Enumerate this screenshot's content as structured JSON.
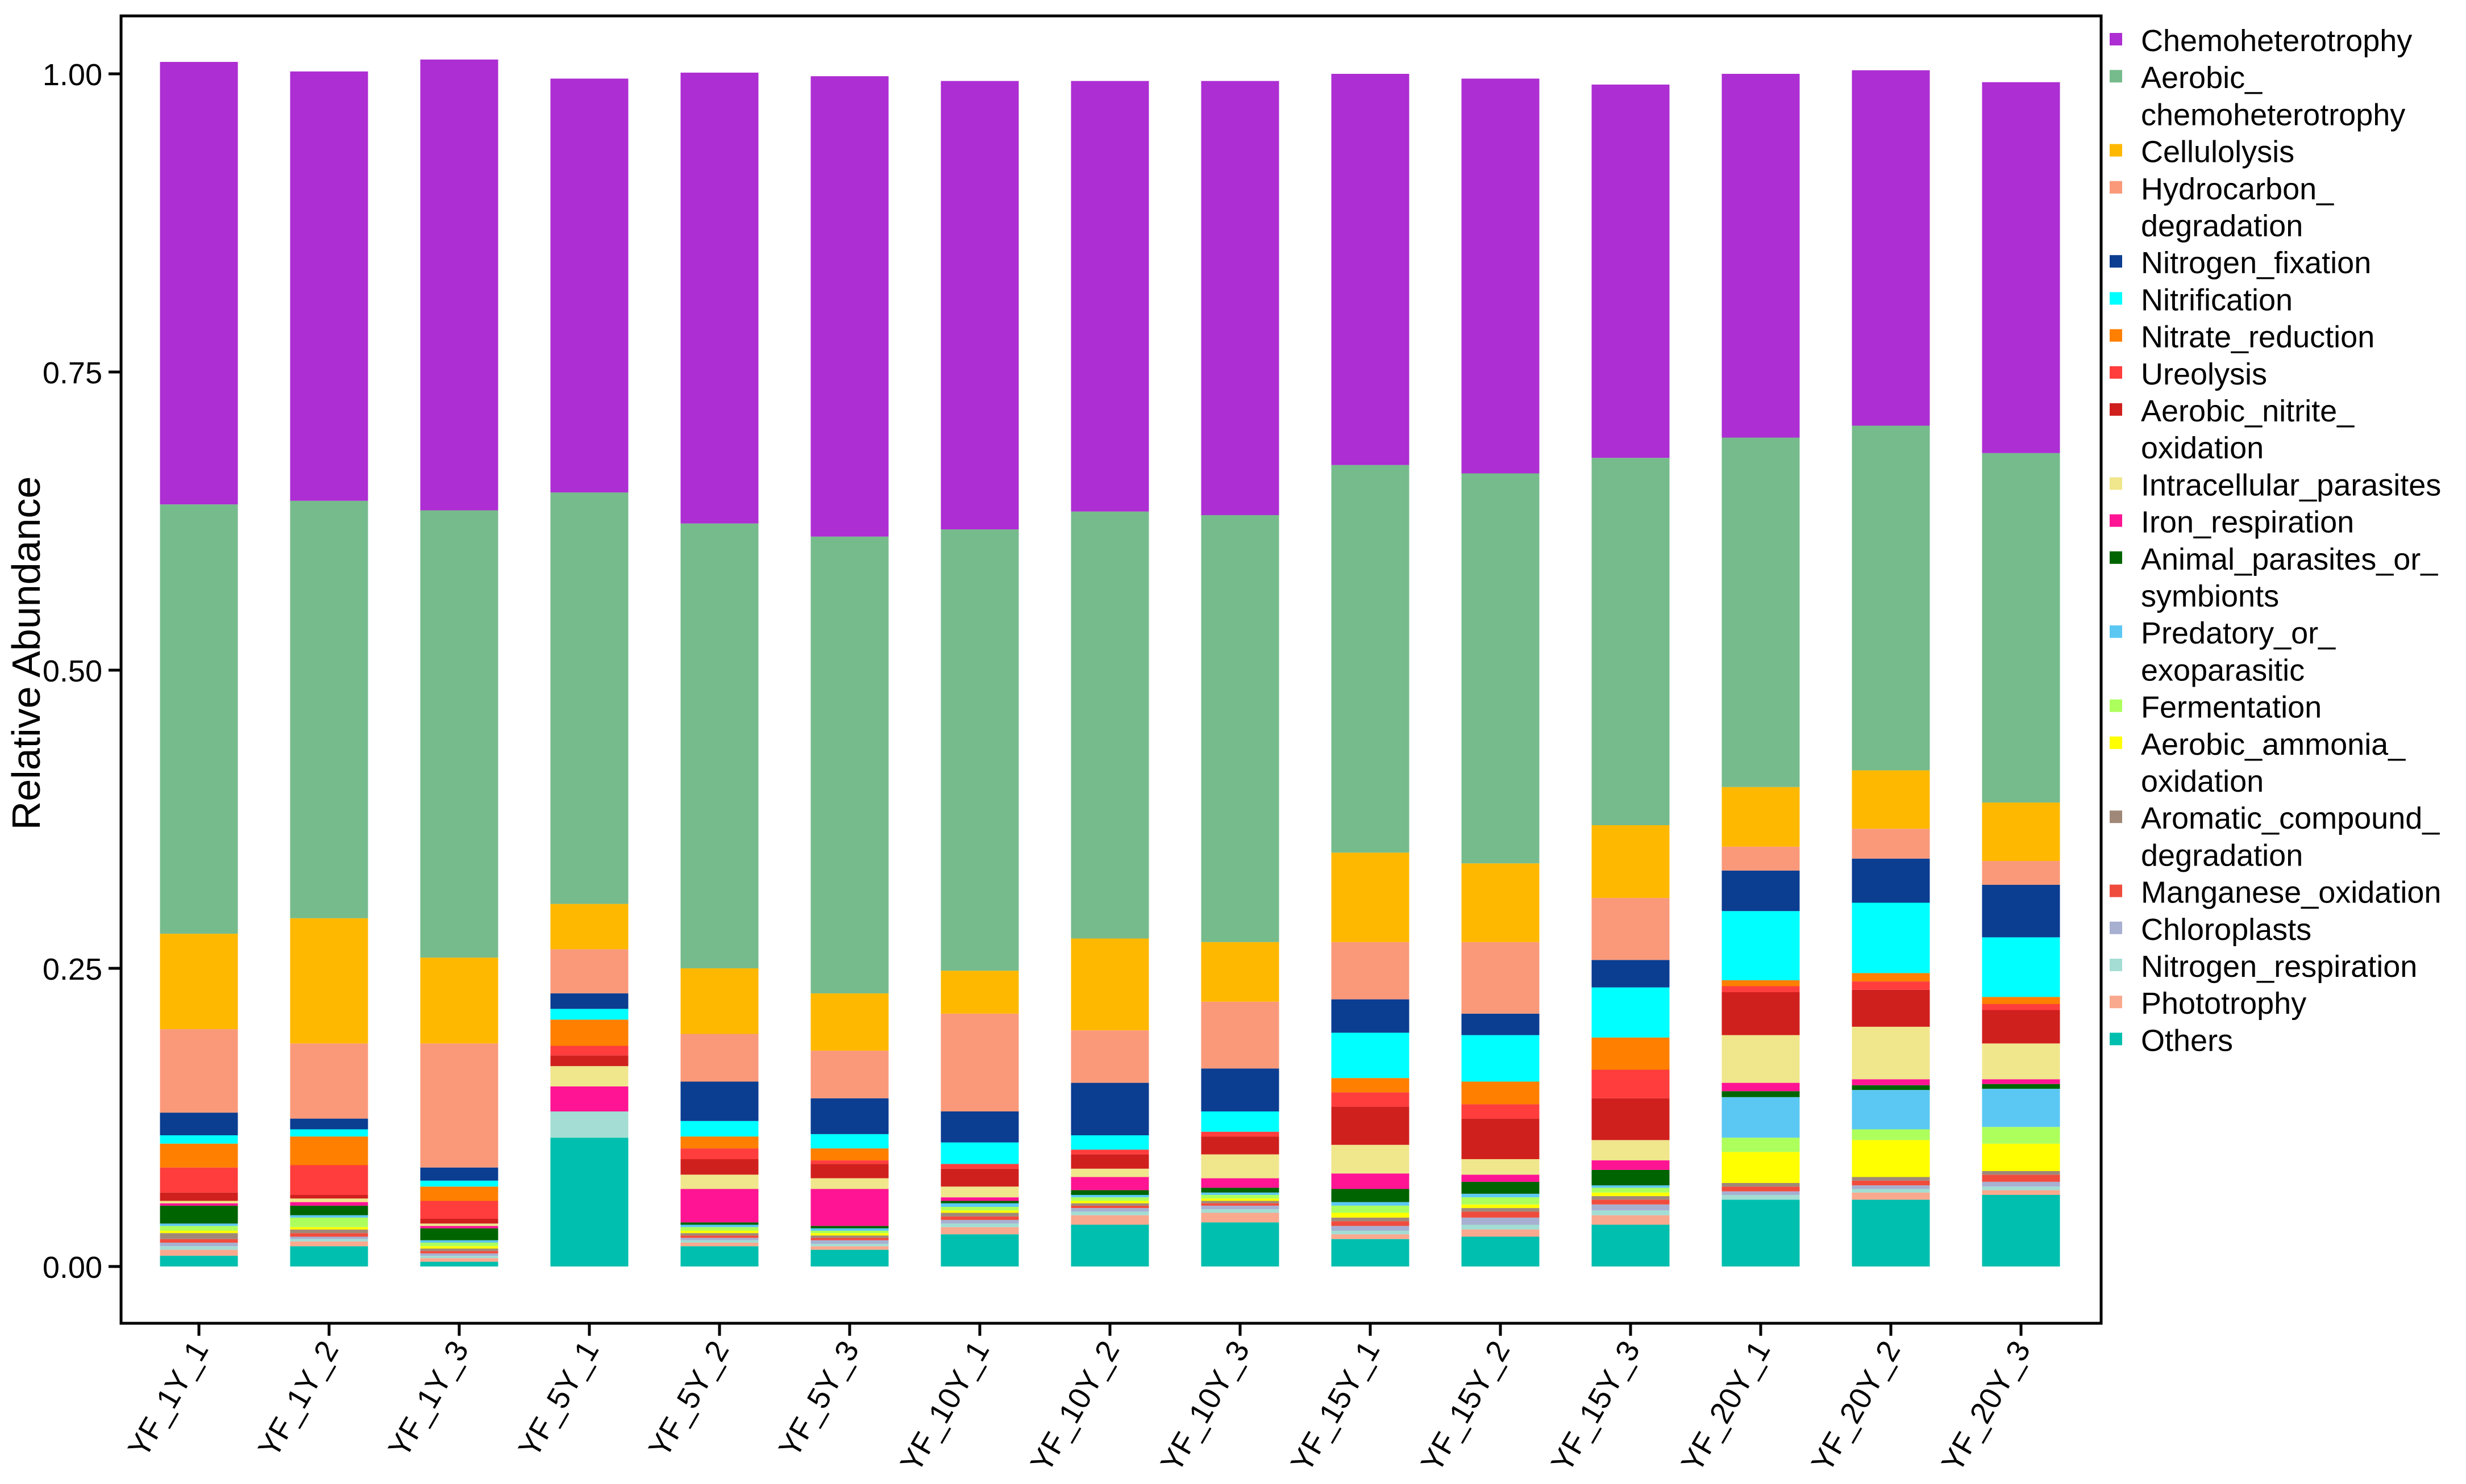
{
  "chart_data": {
    "type": "stacked-bar",
    "title": "",
    "xlabel": "",
    "ylabel": "Relative Abundance",
    "ylim": [
      0,
      1.05
    ],
    "yticks": [
      0.0,
      0.25,
      0.5,
      0.75,
      1.0
    ],
    "ytick_labels": [
      "0.00",
      "0.25",
      "0.50",
      "0.75",
      "1.00"
    ],
    "legend_position": "right",
    "categories": [
      "YF_1Y_1",
      "YF_1Y_2",
      "YF_1Y_3",
      "YF_5Y_1",
      "YF_5Y_2",
      "YF_5Y_3",
      "YF_10Y_1",
      "YF_10Y_2",
      "YF_10Y_3",
      "YF_15Y_1",
      "YF_15Y_2",
      "YF_15Y_3",
      "YF_20Y_1",
      "YF_20Y_2",
      "YF_20Y_3"
    ],
    "series": [
      {
        "name": "Others",
        "legend": [
          "Others"
        ],
        "color": "#00BFAE",
        "values": [
          0.009,
          0.017,
          0.004,
          0.108,
          0.017,
          0.014,
          0.027,
          0.035,
          0.037,
          0.023,
          0.025,
          0.035,
          0.056,
          0.056,
          0.06
        ]
      },
      {
        "name": "Phototrophy",
        "legend": [
          "Phototrophy"
        ],
        "color": "#F9A98E",
        "values": [
          0.005,
          0.004,
          0.003,
          0.0,
          0.003,
          0.003,
          0.006,
          0.008,
          0.008,
          0.004,
          0.006,
          0.008,
          0.0,
          0.006,
          0.004
        ]
      },
      {
        "name": "Nitrogen_respiration",
        "legend": [
          "Nitrogen_respiration"
        ],
        "color": "#A3DDD3",
        "values": [
          0.003,
          0.002,
          0.002,
          0.022,
          0.002,
          0.002,
          0.003,
          0.003,
          0.003,
          0.003,
          0.004,
          0.004,
          0.004,
          0.003,
          0.003
        ]
      },
      {
        "name": "Chloroplasts",
        "legend": [
          "Chloroplasts"
        ],
        "color": "#A7B0D1",
        "values": [
          0.003,
          0.002,
          0.002,
          0.0,
          0.002,
          0.003,
          0.003,
          0.003,
          0.003,
          0.004,
          0.006,
          0.005,
          0.003,
          0.003,
          0.004
        ]
      },
      {
        "name": "Manganese_oxidation",
        "legend": [
          "Manganese_oxidation"
        ],
        "color": "#F04C3E",
        "values": [
          0.003,
          0.003,
          0.002,
          0.0,
          0.002,
          0.002,
          0.003,
          0.002,
          0.002,
          0.004,
          0.005,
          0.004,
          0.004,
          0.004,
          0.006
        ]
      },
      {
        "name": "Aromatic_compound_degradation",
        "legend": [
          "Aromatic_compound_",
          "degradation"
        ],
        "color": "#A08878",
        "values": [
          0.005,
          0.003,
          0.002,
          0.0,
          0.002,
          0.002,
          0.003,
          0.002,
          0.002,
          0.003,
          0.003,
          0.003,
          0.003,
          0.003,
          0.003
        ]
      },
      {
        "name": "Aerobic_ammonia_oxidation",
        "legend": [
          "Aerobic_ammonia_",
          "oxidation"
        ],
        "color": "#FFFF00",
        "values": [
          0.002,
          0.002,
          0.002,
          0.0,
          0.002,
          0.002,
          0.002,
          0.002,
          0.002,
          0.004,
          0.003,
          0.003,
          0.026,
          0.031,
          0.023
        ]
      },
      {
        "name": "Fermentation",
        "legend": [
          "Fermentation"
        ],
        "color": "#ADFF5C",
        "values": [
          0.004,
          0.008,
          0.003,
          0.0,
          0.003,
          0.002,
          0.003,
          0.003,
          0.003,
          0.006,
          0.006,
          0.004,
          0.012,
          0.009,
          0.014
        ]
      },
      {
        "name": "Predatory_or_exoparasitic",
        "legend": [
          "Predatory_or_",
          "exoparasitic"
        ],
        "color": "#5BC8F3",
        "values": [
          0.002,
          0.002,
          0.002,
          0.0,
          0.002,
          0.002,
          0.003,
          0.002,
          0.002,
          0.003,
          0.003,
          0.002,
          0.034,
          0.033,
          0.032
        ]
      },
      {
        "name": "Animal_parasites_or_symbionts",
        "legend": [
          "Animal_parasites_or_",
          "symbionts"
        ],
        "color": "#006400",
        "values": [
          0.015,
          0.008,
          0.01,
          0.0,
          0.002,
          0.002,
          0.002,
          0.004,
          0.004,
          0.011,
          0.01,
          0.013,
          0.005,
          0.004,
          0.004
        ]
      },
      {
        "name": "Iron_respiration",
        "legend": [
          "Iron_respiration"
        ],
        "color": "#FF1493",
        "values": [
          0.002,
          0.003,
          0.002,
          0.021,
          0.028,
          0.031,
          0.003,
          0.011,
          0.008,
          0.013,
          0.006,
          0.008,
          0.007,
          0.005,
          0.004
        ]
      },
      {
        "name": "Intracellular_parasites",
        "legend": [
          "Intracellular_parasites"
        ],
        "color": "#F0E68C",
        "values": [
          0.002,
          0.003,
          0.002,
          0.017,
          0.012,
          0.009,
          0.009,
          0.007,
          0.02,
          0.024,
          0.013,
          0.017,
          0.04,
          0.044,
          0.03
        ]
      },
      {
        "name": "Aerobic_nitrite_oxidation",
        "legend": [
          "Aerobic_nitrite_",
          "oxidation"
        ],
        "color": "#D0201E",
        "values": [
          0.007,
          0.003,
          0.004,
          0.009,
          0.013,
          0.012,
          0.015,
          0.012,
          0.015,
          0.032,
          0.034,
          0.035,
          0.036,
          0.031,
          0.028
        ]
      },
      {
        "name": "Ureolysis",
        "legend": [
          "Ureolysis"
        ],
        "color": "#FF3D3D",
        "values": [
          0.021,
          0.025,
          0.015,
          0.008,
          0.009,
          0.003,
          0.004,
          0.004,
          0.004,
          0.012,
          0.012,
          0.024,
          0.005,
          0.007,
          0.005
        ]
      },
      {
        "name": "Nitrate_reduction",
        "legend": [
          "Nitrate_reduction"
        ],
        "color": "#FF7F00",
        "values": [
          0.02,
          0.024,
          0.012,
          0.022,
          0.01,
          0.01,
          0.0,
          0.0,
          0.0,
          0.012,
          0.019,
          0.027,
          0.005,
          0.007,
          0.006
        ]
      },
      {
        "name": "Nitrification",
        "legend": [
          "Nitrification"
        ],
        "color": "#00FFFF",
        "values": [
          0.007,
          0.006,
          0.005,
          0.009,
          0.013,
          0.012,
          0.018,
          0.012,
          0.017,
          0.038,
          0.039,
          0.042,
          0.058,
          0.059,
          0.05
        ]
      },
      {
        "name": "Nitrogen_fixation",
        "legend": [
          "Nitrogen_fixation"
        ],
        "color": "#0B3D91",
        "values": [
          0.019,
          0.009,
          0.011,
          0.013,
          0.033,
          0.03,
          0.026,
          0.044,
          0.036,
          0.028,
          0.018,
          0.023,
          0.034,
          0.037,
          0.044
        ]
      },
      {
        "name": "Hydrocarbon_degradation",
        "legend": [
          "Hydrocarbon_",
          "degradation"
        ],
        "color": "#F9997A",
        "values": [
          0.07,
          0.063,
          0.104,
          0.037,
          0.04,
          0.04,
          0.082,
          0.044,
          0.056,
          0.048,
          0.06,
          0.052,
          0.02,
          0.025,
          0.02
        ]
      },
      {
        "name": "Cellulolysis",
        "legend": [
          "Cellulolysis"
        ],
        "color": "#FFB800",
        "values": [
          0.08,
          0.105,
          0.072,
          0.038,
          0.055,
          0.048,
          0.036,
          0.077,
          0.05,
          0.075,
          0.066,
          0.061,
          0.05,
          0.049,
          0.049
        ]
      },
      {
        "name": "Aerobic_chemoheterotrophy",
        "legend": [
          "Aerobic_",
          "chemoheterotrophy"
        ],
        "color": "#76BB8C",
        "values": [
          0.36,
          0.35,
          0.375,
          0.345,
          0.373,
          0.383,
          0.37,
          0.358,
          0.358,
          0.325,
          0.327,
          0.308,
          0.293,
          0.289,
          0.293
        ]
      },
      {
        "name": "Chemoheterotrophy",
        "legend": [
          "Chemoheterotrophy"
        ],
        "color": "#AD2ED2",
        "values": [
          0.371,
          0.36,
          0.378,
          0.347,
          0.378,
          0.386,
          0.376,
          0.361,
          0.364,
          0.328,
          0.331,
          0.313,
          0.305,
          0.298,
          0.311
        ]
      }
    ]
  }
}
